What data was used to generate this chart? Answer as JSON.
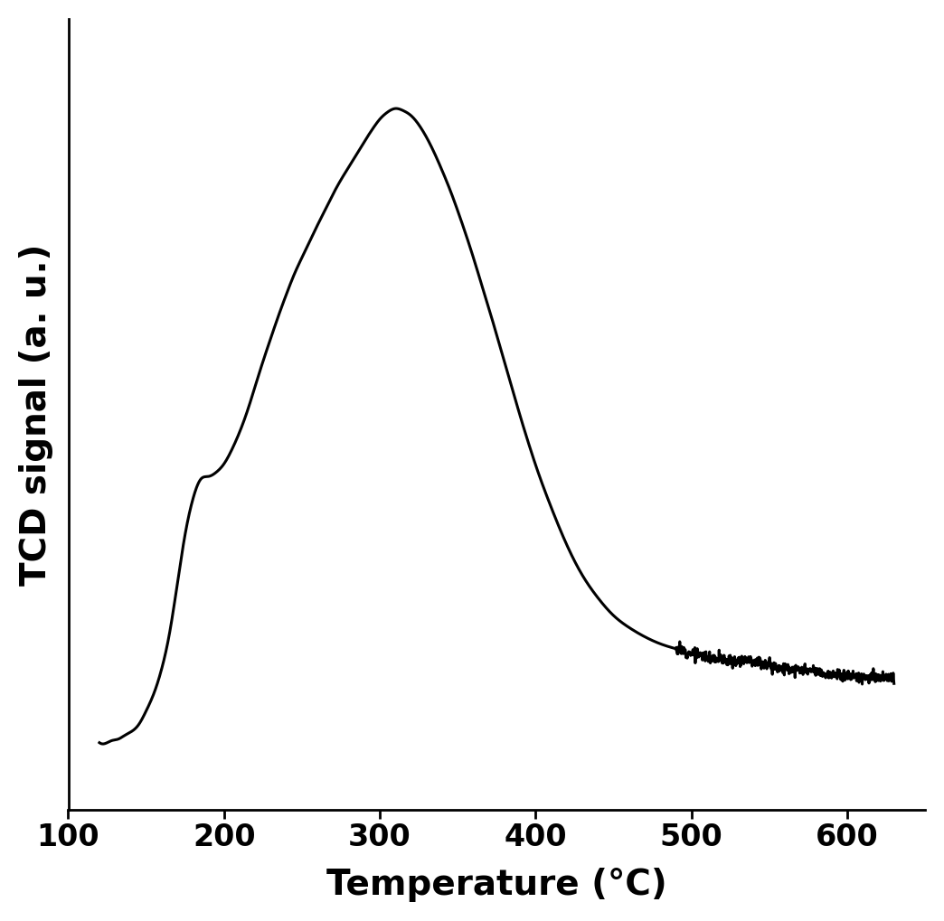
{
  "xlabel": "Temperature (°C)",
  "ylabel": "TCD signal (a. u.)",
  "xlim": [
    100,
    650
  ],
  "xticks": [
    100,
    200,
    300,
    400,
    500,
    600
  ],
  "line_color": "#000000",
  "line_width": 2.2,
  "background_color": "#ffffff",
  "xlabel_fontsize": 28,
  "ylabel_fontsize": 28,
  "tick_fontsize": 24,
  "curve_points": {
    "x": [
      120,
      125,
      128,
      132,
      136,
      140,
      145,
      150,
      155,
      160,
      165,
      170,
      175,
      180,
      185,
      190,
      195,
      200,
      205,
      210,
      215,
      220,
      225,
      230,
      235,
      240,
      245,
      250,
      255,
      260,
      265,
      270,
      275,
      280,
      285,
      290,
      295,
      300,
      305,
      310,
      315,
      320,
      325,
      330,
      335,
      340,
      345,
      350,
      355,
      360,
      365,
      370,
      375,
      380,
      385,
      390,
      395,
      400,
      410,
      420,
      430,
      440,
      450,
      460,
      470,
      480,
      490,
      500,
      505,
      510,
      515,
      520,
      525,
      530,
      535,
      540,
      545,
      550,
      555,
      560,
      565,
      570,
      575,
      580,
      585,
      590,
      595,
      600,
      610,
      620,
      630
    ],
    "y": [
      0.095,
      0.095,
      0.098,
      0.1,
      0.105,
      0.11,
      0.12,
      0.14,
      0.165,
      0.2,
      0.25,
      0.32,
      0.39,
      0.44,
      0.468,
      0.472,
      0.478,
      0.49,
      0.51,
      0.535,
      0.565,
      0.6,
      0.635,
      0.668,
      0.7,
      0.73,
      0.758,
      0.782,
      0.805,
      0.828,
      0.85,
      0.872,
      0.892,
      0.91,
      0.928,
      0.946,
      0.963,
      0.978,
      0.988,
      0.993,
      0.99,
      0.983,
      0.97,
      0.952,
      0.93,
      0.905,
      0.878,
      0.848,
      0.816,
      0.782,
      0.746,
      0.71,
      0.672,
      0.634,
      0.596,
      0.558,
      0.522,
      0.488,
      0.428,
      0.375,
      0.332,
      0.3,
      0.275,
      0.258,
      0.245,
      0.235,
      0.228,
      0.222,
      0.219,
      0.217,
      0.215,
      0.213,
      0.211,
      0.212,
      0.214,
      0.211,
      0.208,
      0.205,
      0.202,
      0.2,
      0.198,
      0.197,
      0.196,
      0.195,
      0.193,
      0.191,
      0.19,
      0.19,
      0.188,
      0.187,
      0.186
    ]
  }
}
